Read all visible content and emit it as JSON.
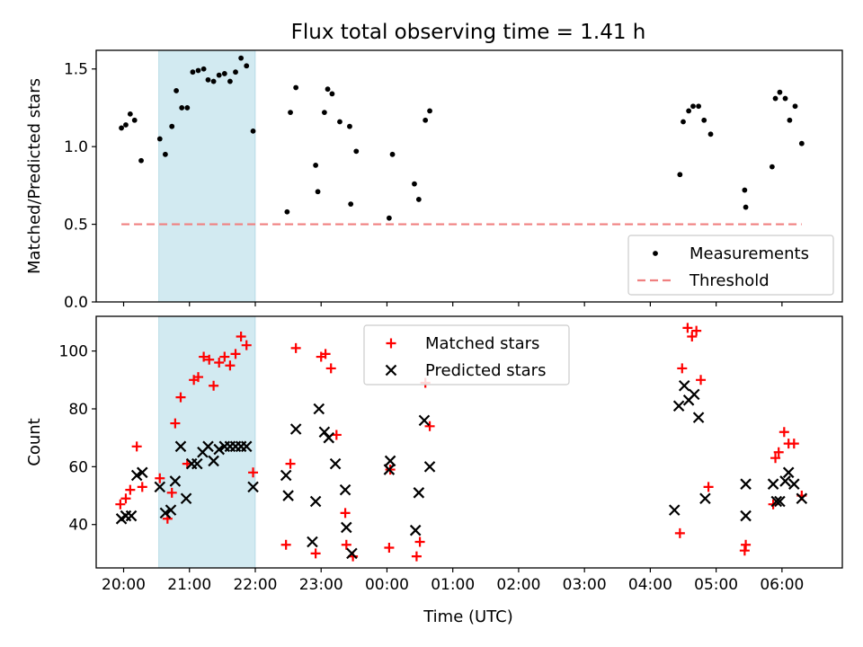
{
  "title": "Flux total observing time = 1.41 h",
  "xlabel": "Time (UTC)",
  "colors": {
    "measurement": "#000000",
    "threshold": "#f08080",
    "matched": "#ff0000",
    "predicted": "#000000",
    "highlight": "#add8e6"
  },
  "chart_data": [
    {
      "type": "scatter",
      "name": "ratio",
      "ylabel": "Matched/Predicted stars",
      "xlim": [
        "19:35",
        "06:55"
      ],
      "ylim": [
        0,
        1.62
      ],
      "yticks": [
        0.0,
        0.5,
        1.0,
        1.5
      ],
      "xticks": [
        "20:00",
        "21:00",
        "22:00",
        "23:00",
        "00:00",
        "01:00",
        "02:00",
        "03:00",
        "04:00",
        "05:00",
        "06:00"
      ],
      "legend_position": "lower-right",
      "highlight_interval": [
        "20:32",
        "22:00"
      ],
      "series": [
        {
          "name": "Measurements",
          "marker": "dot",
          "points": [
            [
              "19:58",
              1.12
            ],
            [
              "20:02",
              1.14
            ],
            [
              "20:06",
              1.21
            ],
            [
              "20:10",
              1.17
            ],
            [
              "20:16",
              0.91
            ],
            [
              "20:33",
              1.05
            ],
            [
              "20:38",
              0.95
            ],
            [
              "20:44",
              1.13
            ],
            [
              "20:48",
              1.36
            ],
            [
              "20:53",
              1.25
            ],
            [
              "20:58",
              1.25
            ],
            [
              "21:03",
              1.48
            ],
            [
              "21:08",
              1.49
            ],
            [
              "21:13",
              1.5
            ],
            [
              "21:17",
              1.43
            ],
            [
              "21:22",
              1.42
            ],
            [
              "21:27",
              1.46
            ],
            [
              "21:32",
              1.47
            ],
            [
              "21:37",
              1.42
            ],
            [
              "21:42",
              1.48
            ],
            [
              "21:47",
              1.57
            ],
            [
              "21:52",
              1.52
            ],
            [
              "21:58",
              1.1
            ],
            [
              "22:29",
              0.58
            ],
            [
              "22:32",
              1.22
            ],
            [
              "22:37",
              1.38
            ],
            [
              "22:55",
              0.88
            ],
            [
              "22:57",
              0.71
            ],
            [
              "23:03",
              1.22
            ],
            [
              "23:06",
              1.37
            ],
            [
              "23:10",
              1.34
            ],
            [
              "23:17",
              1.16
            ],
            [
              "23:26",
              1.13
            ],
            [
              "23:27",
              0.63
            ],
            [
              "23:32",
              0.97
            ],
            [
              "00:02",
              0.54
            ],
            [
              "00:05",
              0.95
            ],
            [
              "00:25",
              0.76
            ],
            [
              "00:29",
              0.66
            ],
            [
              "00:35",
              1.17
            ],
            [
              "00:39",
              1.23
            ],
            [
              "04:27",
              0.82
            ],
            [
              "04:30",
              1.16
            ],
            [
              "04:35",
              1.23
            ],
            [
              "04:39",
              1.26
            ],
            [
              "04:44",
              1.26
            ],
            [
              "04:49",
              1.17
            ],
            [
              "04:55",
              1.08
            ],
            [
              "05:26",
              0.72
            ],
            [
              "05:27",
              0.61
            ],
            [
              "05:51",
              0.87
            ],
            [
              "05:54",
              1.31
            ],
            [
              "05:58",
              1.35
            ],
            [
              "06:03",
              1.31
            ],
            [
              "06:07",
              1.17
            ],
            [
              "06:12",
              1.26
            ],
            [
              "06:18",
              1.02
            ]
          ]
        },
        {
          "name": "Threshold",
          "marker": "dashed-line",
          "points": [
            [
              "19:58",
              0.5
            ],
            [
              "06:18",
              0.5
            ]
          ]
        }
      ]
    },
    {
      "type": "scatter",
      "name": "counts",
      "ylabel": "Count",
      "xlim": [
        "19:35",
        "06:55"
      ],
      "ylim": [
        25,
        112
      ],
      "yticks": [
        40,
        60,
        80,
        100
      ],
      "xticks": [
        "20:00",
        "21:00",
        "22:00",
        "23:00",
        "00:00",
        "01:00",
        "02:00",
        "03:00",
        "04:00",
        "05:00",
        "06:00"
      ],
      "legend_position": "upper-center",
      "highlight_interval": [
        "20:32",
        "22:00"
      ],
      "series": [
        {
          "name": "Matched stars",
          "marker": "plus",
          "points": [
            [
              "19:57",
              47
            ],
            [
              "20:02",
              49
            ],
            [
              "20:06",
              52
            ],
            [
              "20:12",
              67
            ],
            [
              "20:17",
              53
            ],
            [
              "20:33",
              56
            ],
            [
              "20:40",
              42
            ],
            [
              "20:44",
              51
            ],
            [
              "20:47",
              75
            ],
            [
              "20:52",
              84
            ],
            [
              "20:58",
              61
            ],
            [
              "21:04",
              90
            ],
            [
              "21:08",
              91
            ],
            [
              "21:13",
              98
            ],
            [
              "21:18",
              97
            ],
            [
              "21:22",
              88
            ],
            [
              "21:27",
              96
            ],
            [
              "21:32",
              98
            ],
            [
              "21:37",
              95
            ],
            [
              "21:42",
              99
            ],
            [
              "21:47",
              105
            ],
            [
              "21:52",
              102
            ],
            [
              "21:58",
              58
            ],
            [
              "22:28",
              33
            ],
            [
              "22:32",
              61
            ],
            [
              "22:37",
              101
            ],
            [
              "22:55",
              30
            ],
            [
              "23:00",
              98
            ],
            [
              "23:04",
              99
            ],
            [
              "23:09",
              94
            ],
            [
              "23:14",
              71
            ],
            [
              "23:22",
              44
            ],
            [
              "23:23",
              33
            ],
            [
              "23:29",
              29
            ],
            [
              "00:02",
              32
            ],
            [
              "00:03",
              59
            ],
            [
              "00:27",
              29
            ],
            [
              "00:30",
              34
            ],
            [
              "00:35",
              89
            ],
            [
              "00:39",
              74
            ],
            [
              "04:27",
              37
            ],
            [
              "04:29",
              94
            ],
            [
              "04:34",
              108
            ],
            [
              "04:38",
              105
            ],
            [
              "04:42",
              107
            ],
            [
              "04:46",
              90
            ],
            [
              "04:53",
              53
            ],
            [
              "05:26",
              31
            ],
            [
              "05:27",
              33
            ],
            [
              "05:52",
              47
            ],
            [
              "05:54",
              63
            ],
            [
              "05:57",
              65
            ],
            [
              "06:02",
              72
            ],
            [
              "06:06",
              68
            ],
            [
              "06:11",
              68
            ],
            [
              "06:18",
              50
            ]
          ]
        },
        {
          "name": "Predicted stars",
          "marker": "x",
          "points": [
            [
              "19:58",
              42
            ],
            [
              "20:02",
              43
            ],
            [
              "20:07",
              43
            ],
            [
              "20:12",
              57
            ],
            [
              "20:17",
              58
            ],
            [
              "20:33",
              53
            ],
            [
              "20:38",
              44
            ],
            [
              "20:43",
              45
            ],
            [
              "20:47",
              55
            ],
            [
              "20:52",
              67
            ],
            [
              "20:57",
              49
            ],
            [
              "21:02",
              61
            ],
            [
              "21:07",
              61
            ],
            [
              "21:12",
              65
            ],
            [
              "21:17",
              67
            ],
            [
              "21:22",
              62
            ],
            [
              "21:27",
              66
            ],
            [
              "21:32",
              67
            ],
            [
              "21:37",
              67
            ],
            [
              "21:42",
              67
            ],
            [
              "21:47",
              67
            ],
            [
              "21:52",
              67
            ],
            [
              "21:58",
              53
            ],
            [
              "22:28",
              57
            ],
            [
              "22:30",
              50
            ],
            [
              "22:37",
              73
            ],
            [
              "22:52",
              34
            ],
            [
              "22:55",
              48
            ],
            [
              "22:58",
              80
            ],
            [
              "23:03",
              72
            ],
            [
              "23:07",
              70
            ],
            [
              "23:13",
              61
            ],
            [
              "23:22",
              52
            ],
            [
              "23:23",
              39
            ],
            [
              "23:28",
              30
            ],
            [
              "00:02",
              59
            ],
            [
              "00:03",
              62
            ],
            [
              "00:26",
              38
            ],
            [
              "00:29",
              51
            ],
            [
              "00:34",
              76
            ],
            [
              "00:39",
              60
            ],
            [
              "04:22",
              45
            ],
            [
              "04:26",
              81
            ],
            [
              "04:31",
              88
            ],
            [
              "04:35",
              83
            ],
            [
              "04:40",
              85
            ],
            [
              "04:44",
              77
            ],
            [
              "04:50",
              49
            ],
            [
              "05:27",
              54
            ],
            [
              "05:27",
              43
            ],
            [
              "05:52",
              54
            ],
            [
              "05:55",
              48
            ],
            [
              "05:58",
              48
            ],
            [
              "06:03",
              55
            ],
            [
              "06:06",
              58
            ],
            [
              "06:11",
              54
            ],
            [
              "06:18",
              49
            ]
          ]
        }
      ]
    }
  ]
}
